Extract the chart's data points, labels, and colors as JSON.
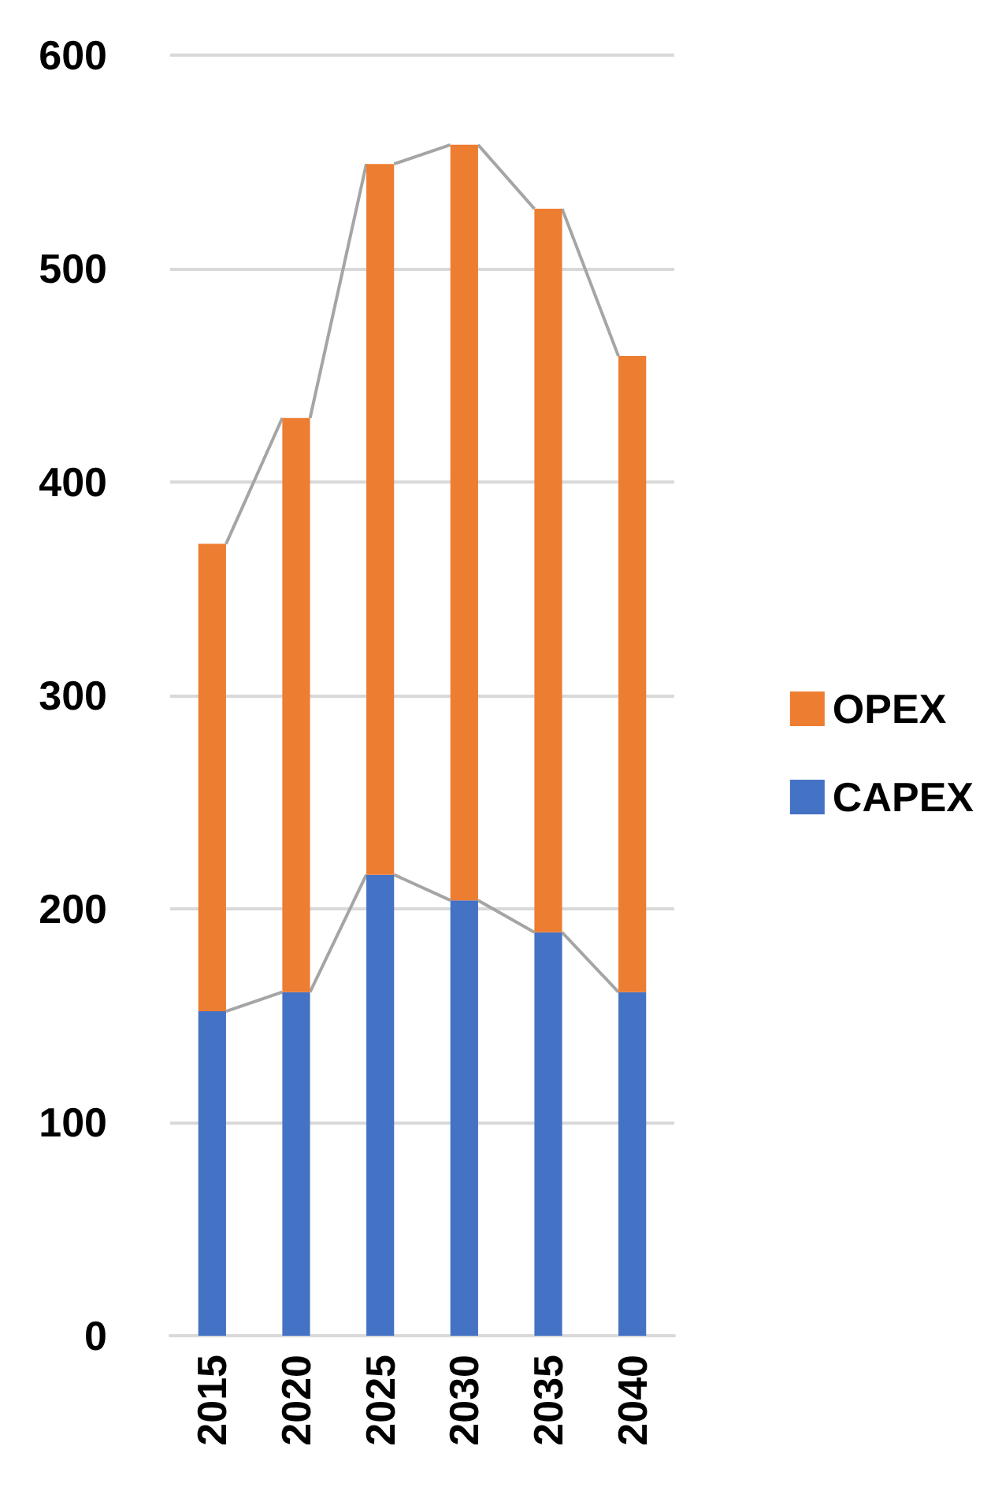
{
  "chart_data": {
    "type": "bar",
    "stacked": true,
    "categories": [
      "2015",
      "2020",
      "2025",
      "2030",
      "2035",
      "2040"
    ],
    "series": [
      {
        "name": "CAPEX",
        "color": "#4472c4",
        "values": [
          152,
          161,
          216,
          204,
          189,
          161
        ]
      },
      {
        "name": "OPEX",
        "color": "#ed7d31",
        "values": [
          219,
          269,
          333,
          354,
          339,
          298
        ]
      }
    ],
    "ylim": [
      0,
      600
    ],
    "yticks": [
      0,
      100,
      200,
      300,
      400,
      500,
      600
    ],
    "grid": "y",
    "legend": "right"
  }
}
